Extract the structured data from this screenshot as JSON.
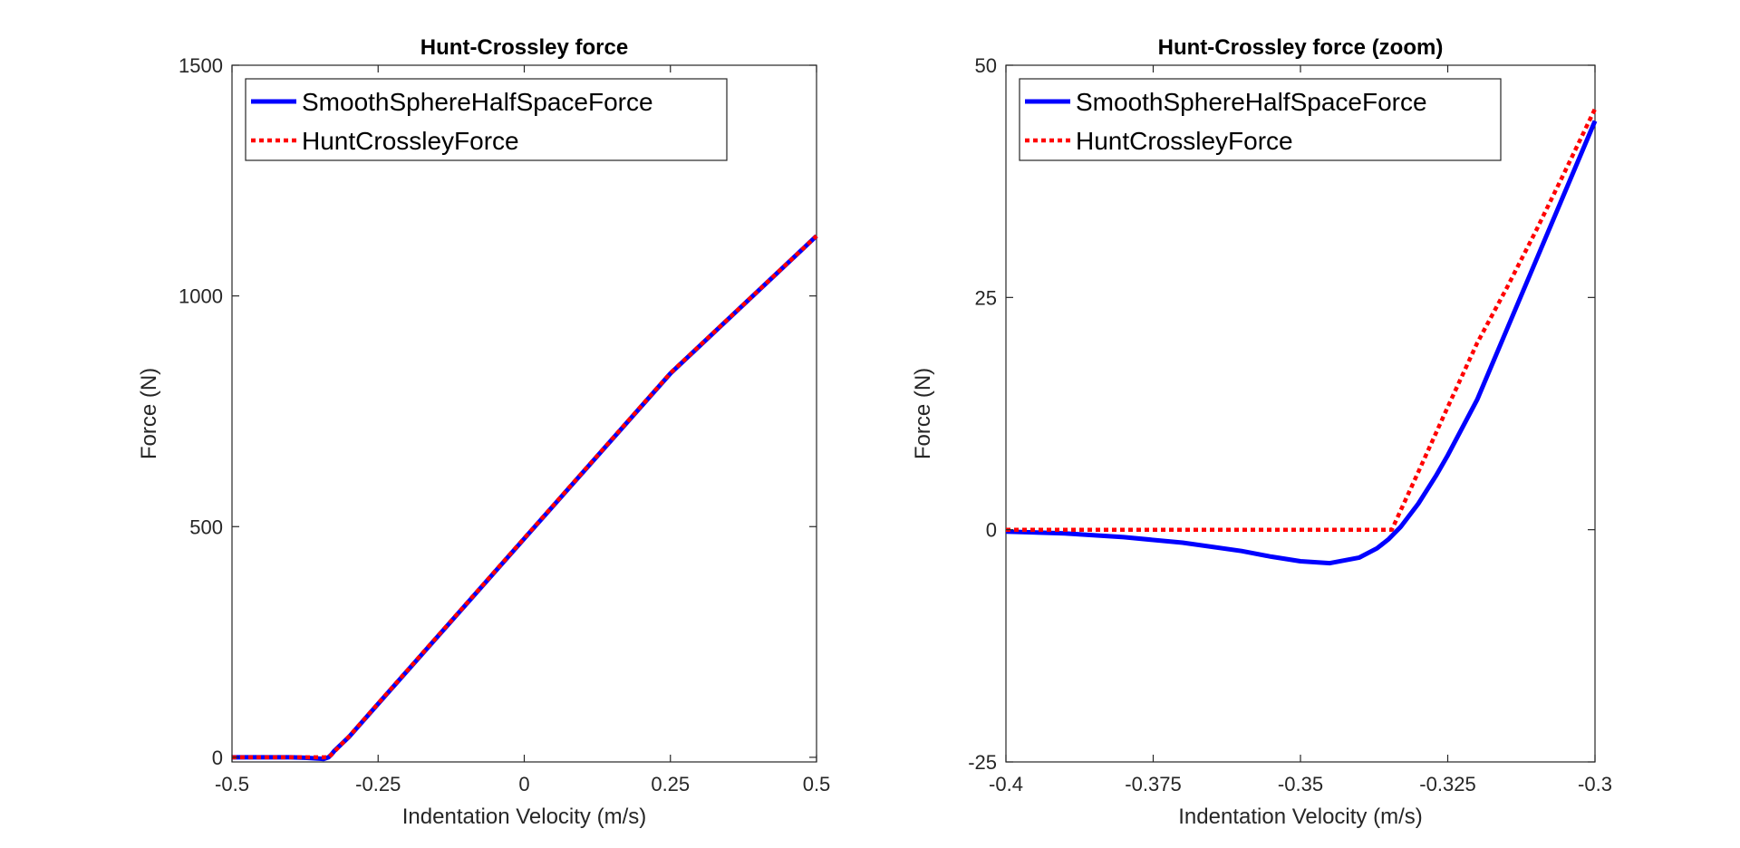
{
  "chart_data": [
    {
      "type": "line",
      "title": "Hunt-Crossley force",
      "xlabel": "Indentation Velocity (m/s)",
      "ylabel": "Force (N)",
      "xlim": [
        -0.5,
        0.5
      ],
      "ylim": [
        -10,
        1500
      ],
      "xticks": [
        -0.5,
        -0.25,
        0,
        0.25,
        0.5
      ],
      "xtick_labels": [
        "-0.5",
        "-0.25",
        "0",
        "0.25",
        "0.5"
      ],
      "yticks": [
        0,
        500,
        1000,
        1500
      ],
      "ytick_labels": [
        "0",
        "500",
        "1000",
        "1500"
      ],
      "grid": false,
      "legend_position": "top-left",
      "series": [
        {
          "name": "SmoothSphereHalfSpaceForce",
          "color": "#0000ff",
          "style": "solid",
          "x": [
            -0.5,
            -0.45,
            -0.4,
            -0.375,
            -0.35,
            -0.343,
            -0.335,
            -0.33,
            -0.325,
            -0.3,
            -0.25,
            0,
            0.25,
            0.5
          ],
          "y": [
            0,
            0,
            0,
            -1,
            -3,
            -3.5,
            0,
            6,
            14,
            44,
            116,
            474,
            832,
            1130
          ]
        },
        {
          "name": "HuntCrossleyForce",
          "color": "#ff0000",
          "style": "dotted",
          "x": [
            -0.5,
            -0.45,
            -0.4,
            -0.37,
            -0.3345,
            -0.3,
            -0.25,
            0,
            0.25,
            0.5
          ],
          "y": [
            0,
            0,
            0,
            0,
            0,
            45,
            117,
            475,
            833,
            1130
          ]
        }
      ]
    },
    {
      "type": "line",
      "title": "Hunt-Crossley force (zoom)",
      "xlabel": "Indentation Velocity (m/s)",
      "ylabel": "Force (N)",
      "xlim": [
        -0.4,
        -0.3
      ],
      "ylim": [
        -25,
        50
      ],
      "xticks": [
        -0.4,
        -0.375,
        -0.35,
        -0.325,
        -0.3
      ],
      "xtick_labels": [
        "-0.4",
        "-0.375",
        "-0.35",
        "-0.325",
        "-0.3"
      ],
      "yticks": [
        -25,
        0,
        25,
        50
      ],
      "ytick_labels": [
        "-25",
        "0",
        "25",
        "50"
      ],
      "grid": false,
      "legend_position": "top-left",
      "series": [
        {
          "name": "SmoothSphereHalfSpaceForce",
          "color": "#0000ff",
          "style": "solid",
          "x": [
            -0.4,
            -0.39,
            -0.38,
            -0.37,
            -0.36,
            -0.355,
            -0.35,
            -0.345,
            -0.34,
            -0.337,
            -0.335,
            -0.333,
            -0.33,
            -0.327,
            -0.325,
            -0.32,
            -0.315,
            -0.31,
            -0.305,
            -0.3
          ],
          "y": [
            -0.2,
            -0.4,
            -0.8,
            -1.4,
            -2.3,
            -2.9,
            -3.4,
            -3.6,
            -3.0,
            -2.0,
            -1.0,
            0.3,
            2.8,
            5.8,
            8.0,
            14.0,
            21.5,
            29.0,
            36.5,
            44.0
          ]
        },
        {
          "name": "HuntCrossleyForce",
          "color": "#ff0000",
          "style": "dotted",
          "x": [
            -0.4,
            -0.38,
            -0.36,
            -0.34,
            -0.3345,
            -0.33,
            -0.325,
            -0.32,
            -0.315,
            -0.31,
            -0.305,
            -0.3
          ],
          "y": [
            0,
            0,
            0,
            0,
            0,
            6.2,
            13.2,
            20.1,
            26.0,
            32.2,
            38.7,
            45.3
          ]
        }
      ]
    }
  ]
}
